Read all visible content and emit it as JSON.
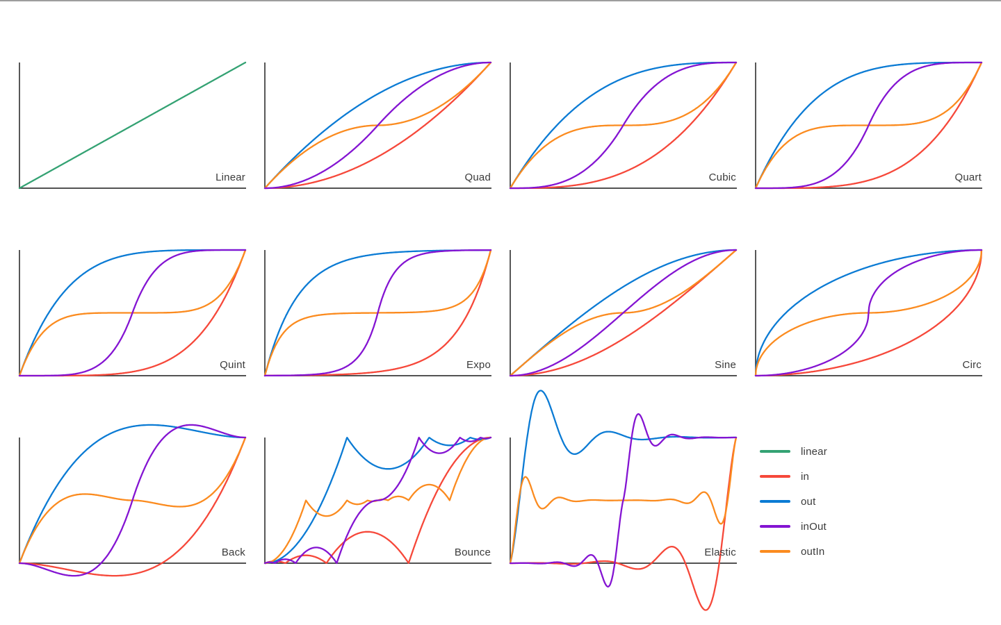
{
  "page": {
    "background": "#ffffff",
    "top_border_color": "#9d9d9d"
  },
  "colors": {
    "linear": "#34a273",
    "in": "#f6483a",
    "out": "#0b7bd4",
    "inOut": "#8414d2",
    "outIn": "#fb8b1f",
    "axis": "#3a3a3a",
    "label": "#3a3a3a"
  },
  "legend": {
    "items": [
      {
        "label": "linear",
        "color_key": "linear"
      },
      {
        "label": "in",
        "color_key": "in"
      },
      {
        "label": "out",
        "color_key": "out"
      },
      {
        "label": "inOut",
        "color_key": "inOut"
      },
      {
        "label": "outIn",
        "color_key": "outIn"
      }
    ]
  },
  "x_samples": [
    0,
    0.1,
    0.2,
    0.3,
    0.4,
    0.5,
    0.6,
    0.7,
    0.8,
    0.9,
    1
  ],
  "chart_data": [
    {
      "type": "line",
      "title": "Linear",
      "family": "linear",
      "x_range": [
        0,
        1
      ],
      "y_range": [
        0,
        1
      ],
      "grid": false,
      "series": [
        {
          "name": "linear",
          "color_key": "linear",
          "easing": "in",
          "values": [
            0,
            0.1,
            0.2,
            0.3,
            0.4,
            0.5,
            0.6,
            0.7,
            0.8,
            0.9,
            1
          ]
        }
      ]
    },
    {
      "type": "line",
      "title": "Quad",
      "family": "quad",
      "x_range": [
        0,
        1
      ],
      "y_range": [
        0,
        1
      ],
      "grid": false,
      "series": [
        {
          "name": "in",
          "color_key": "in",
          "easing": "in",
          "values": [
            0,
            0.01,
            0.04,
            0.09,
            0.16,
            0.25,
            0.36,
            0.49,
            0.64,
            0.81,
            1
          ]
        },
        {
          "name": "out",
          "color_key": "out",
          "easing": "out",
          "values": [
            0,
            0.19,
            0.36,
            0.51,
            0.64,
            0.75,
            0.84,
            0.91,
            0.96,
            0.99,
            1
          ]
        },
        {
          "name": "outIn",
          "color_key": "outIn",
          "easing": "outIn",
          "values": [
            0,
            0.18,
            0.32,
            0.42,
            0.48,
            0.5,
            0.52,
            0.58,
            0.68,
            0.82,
            1
          ]
        },
        {
          "name": "inOut",
          "color_key": "inOut",
          "easing": "inOut",
          "values": [
            0,
            0.02,
            0.08,
            0.18,
            0.32,
            0.5,
            0.68,
            0.82,
            0.92,
            0.98,
            1
          ]
        }
      ]
    },
    {
      "type": "line",
      "title": "Cubic",
      "family": "cubic",
      "x_range": [
        0,
        1
      ],
      "y_range": [
        0,
        1
      ],
      "grid": false,
      "series": [
        {
          "name": "in",
          "color_key": "in",
          "easing": "in",
          "values": [
            0,
            0.001,
            0.008,
            0.027,
            0.064,
            0.125,
            0.216,
            0.343,
            0.512,
            0.729,
            1
          ]
        },
        {
          "name": "out",
          "color_key": "out",
          "easing": "out",
          "values": [
            0,
            0.271,
            0.488,
            0.657,
            0.784,
            0.875,
            0.936,
            0.973,
            0.992,
            0.999,
            1
          ]
        },
        {
          "name": "outIn",
          "color_key": "outIn",
          "easing": "outIn",
          "values": [
            0,
            0.244,
            0.392,
            0.468,
            0.496,
            0.5,
            0.504,
            0.532,
            0.608,
            0.756,
            1
          ]
        },
        {
          "name": "inOut",
          "color_key": "inOut",
          "easing": "inOut",
          "values": [
            0,
            0.004,
            0.032,
            0.108,
            0.256,
            0.5,
            0.744,
            0.892,
            0.968,
            0.996,
            1
          ]
        }
      ]
    },
    {
      "type": "line",
      "title": "Quart",
      "family": "quart",
      "x_range": [
        0,
        1
      ],
      "y_range": [
        0,
        1
      ],
      "grid": false,
      "series": [
        {
          "name": "in",
          "color_key": "in",
          "easing": "in",
          "values": [
            0,
            0,
            0.002,
            0.008,
            0.026,
            0.063,
            0.13,
            0.24,
            0.41,
            0.656,
            1
          ]
        },
        {
          "name": "out",
          "color_key": "out",
          "easing": "out",
          "values": [
            0,
            0.344,
            0.59,
            0.76,
            0.87,
            0.938,
            0.974,
            0.992,
            0.998,
            1,
            1
          ]
        },
        {
          "name": "outIn",
          "color_key": "outIn",
          "easing": "outIn",
          "values": [
            0,
            0.295,
            0.435,
            0.487,
            0.499,
            0.5,
            0.501,
            0.513,
            0.565,
            0.705,
            1
          ]
        },
        {
          "name": "inOut",
          "color_key": "inOut",
          "easing": "inOut",
          "values": [
            0,
            0.001,
            0.013,
            0.065,
            0.205,
            0.5,
            0.795,
            0.935,
            0.987,
            0.999,
            1
          ]
        }
      ]
    },
    {
      "type": "line",
      "title": "Quint",
      "family": "quint",
      "x_range": [
        0,
        1
      ],
      "y_range": [
        0,
        1
      ],
      "grid": false,
      "series": [
        {
          "name": "in",
          "color_key": "in",
          "easing": "in",
          "values": [
            0,
            0,
            0,
            0.002,
            0.01,
            0.031,
            0.078,
            0.168,
            0.328,
            0.59,
            1
          ]
        },
        {
          "name": "out",
          "color_key": "out",
          "easing": "out",
          "values": [
            0,
            0.41,
            0.672,
            0.832,
            0.922,
            0.969,
            0.99,
            0.998,
            1,
            1,
            1
          ]
        },
        {
          "name": "outIn",
          "color_key": "outIn",
          "easing": "outIn",
          "values": [
            0,
            0.336,
            0.461,
            0.495,
            0.5,
            0.5,
            0.5,
            0.505,
            0.539,
            0.664,
            1
          ]
        },
        {
          "name": "inOut",
          "color_key": "inOut",
          "easing": "inOut",
          "values": [
            0,
            0,
            0.005,
            0.039,
            0.164,
            0.5,
            0.836,
            0.961,
            0.995,
            1,
            1
          ]
        }
      ]
    },
    {
      "type": "line",
      "title": "Expo",
      "family": "expo",
      "x_range": [
        0,
        1
      ],
      "y_range": [
        0,
        1
      ],
      "grid": false,
      "series": [
        {
          "name": "in",
          "color_key": "in",
          "easing": "in",
          "values": [
            0,
            0.002,
            0.004,
            0.008,
            0.016,
            0.031,
            0.063,
            0.125,
            0.25,
            0.5,
            1
          ]
        },
        {
          "name": "out",
          "color_key": "out",
          "easing": "out",
          "values": [
            0,
            0.5,
            0.75,
            0.875,
            0.938,
            0.969,
            0.984,
            0.992,
            0.996,
            0.998,
            1
          ]
        },
        {
          "name": "outIn",
          "color_key": "outIn",
          "easing": "outIn",
          "values": [
            0,
            0.375,
            0.469,
            0.492,
            0.498,
            0.5,
            0.502,
            0.508,
            0.531,
            0.625,
            1
          ]
        },
        {
          "name": "inOut",
          "color_key": "inOut",
          "easing": "inOut",
          "values": [
            0,
            0.002,
            0.008,
            0.031,
            0.125,
            0.5,
            0.875,
            0.969,
            0.992,
            0.998,
            1
          ]
        }
      ]
    },
    {
      "type": "line",
      "title": "Sine",
      "family": "sine",
      "x_range": [
        0,
        1
      ],
      "y_range": [
        0,
        1
      ],
      "grid": false,
      "series": [
        {
          "name": "in",
          "color_key": "in",
          "easing": "in",
          "values": [
            0,
            0.012,
            0.049,
            0.109,
            0.191,
            0.293,
            0.412,
            0.546,
            0.691,
            0.844,
            1
          ]
        },
        {
          "name": "out",
          "color_key": "out",
          "easing": "out",
          "values": [
            0,
            0.156,
            0.309,
            0.454,
            0.588,
            0.707,
            0.809,
            0.891,
            0.951,
            0.988,
            1
          ]
        },
        {
          "name": "outIn",
          "color_key": "outIn",
          "easing": "outIn",
          "values": [
            0,
            0.155,
            0.294,
            0.405,
            0.476,
            0.5,
            0.524,
            0.596,
            0.706,
            0.845,
            1
          ]
        },
        {
          "name": "inOut",
          "color_key": "inOut",
          "easing": "inOut",
          "values": [
            0,
            0.024,
            0.095,
            0.206,
            0.345,
            0.5,
            0.655,
            0.794,
            0.905,
            0.976,
            1
          ]
        }
      ]
    },
    {
      "type": "line",
      "title": "Circ",
      "family": "circ",
      "x_range": [
        0,
        1
      ],
      "y_range": [
        0,
        1
      ],
      "grid": false,
      "series": [
        {
          "name": "in",
          "color_key": "in",
          "easing": "in",
          "values": [
            0,
            0.005,
            0.02,
            0.046,
            0.083,
            0.134,
            0.2,
            0.286,
            0.4,
            0.564,
            1
          ]
        },
        {
          "name": "out",
          "color_key": "out",
          "easing": "out",
          "values": [
            0,
            0.436,
            0.6,
            0.714,
            0.8,
            0.866,
            0.917,
            0.954,
            0.98,
            0.995,
            1
          ]
        },
        {
          "name": "outIn",
          "color_key": "outIn",
          "easing": "outIn",
          "values": [
            0,
            0.3,
            0.4,
            0.458,
            0.49,
            0.5,
            0.51,
            0.542,
            0.6,
            0.7,
            1
          ]
        },
        {
          "name": "inOut",
          "color_key": "inOut",
          "easing": "inOut",
          "values": [
            0,
            0.01,
            0.042,
            0.1,
            0.2,
            0.5,
            0.8,
            0.9,
            0.958,
            0.99,
            1
          ]
        }
      ]
    },
    {
      "type": "line",
      "title": "Back",
      "family": "back",
      "x_range": [
        0,
        1
      ],
      "y_range": [
        -0.1,
        1.1
      ],
      "grid": false,
      "series": [
        {
          "name": "in",
          "color_key": "in",
          "easing": "in",
          "values": [
            0,
            -0.014,
            -0.046,
            -0.08,
            -0.099,
            -0.088,
            -0.029,
            0.093,
            0.294,
            0.591,
            1
          ]
        },
        {
          "name": "out",
          "color_key": "out",
          "easing": "out",
          "values": [
            0,
            0.409,
            0.706,
            0.907,
            1.029,
            1.088,
            1.099,
            1.08,
            1.046,
            1.014,
            1
          ]
        },
        {
          "name": "outIn",
          "color_key": "outIn",
          "easing": "outIn",
          "values": [
            0,
            0.353,
            0.515,
            0.549,
            0.523,
            0.5,
            0.477,
            0.45,
            0.485,
            0.647,
            1
          ]
        },
        {
          "name": "inOut",
          "color_key": "inOut",
          "easing": "inOut",
          "values": [
            0,
            -0.038,
            -0.093,
            -0.079,
            0.09,
            0.5,
            0.91,
            1.079,
            1.093,
            1.038,
            1
          ]
        }
      ]
    },
    {
      "type": "line",
      "title": "Bounce",
      "family": "bounce",
      "x_range": [
        0,
        1
      ],
      "y_range": [
        0,
        1
      ],
      "grid": false,
      "series": [
        {
          "name": "in",
          "color_key": "in",
          "easing": "in",
          "values": [
            0,
            0.012,
            0.06,
            0.069,
            0.228,
            0.234,
            0.09,
            0.319,
            0.698,
            0.924,
            1
          ]
        },
        {
          "name": "out",
          "color_key": "out",
          "easing": "out",
          "values": [
            0,
            0.076,
            0.303,
            0.681,
            0.91,
            0.766,
            0.772,
            0.931,
            0.94,
            0.988,
            1
          ]
        },
        {
          "name": "outIn",
          "color_key": "outIn",
          "easing": "outIn",
          "values": [
            0,
            0.151,
            0.455,
            0.386,
            0.47,
            0.5,
            0.53,
            0.614,
            0.545,
            0.849,
            1
          ]
        },
        {
          "name": "inOut",
          "color_key": "inOut",
          "easing": "inOut",
          "values": [
            0,
            0.03,
            0.114,
            0.045,
            0.349,
            0.5,
            0.651,
            0.955,
            0.883,
            0.97,
            1
          ]
        }
      ]
    },
    {
      "type": "line",
      "title": "Elastic",
      "family": "elastic",
      "x_range": [
        0,
        1
      ],
      "y_range": [
        -0.37,
        1.39
      ],
      "grid": false,
      "series": [
        {
          "name": "in",
          "color_key": "in",
          "easing": "in",
          "values": [
            0,
            0.002,
            -0.002,
            -0.004,
            0.016,
            -0.016,
            -0.031,
            0.125,
            -0.125,
            -0.25,
            1
          ]
        },
        {
          "name": "out",
          "color_key": "out",
          "easing": "out",
          "values": [
            0,
            1.25,
            1.125,
            0.875,
            1.031,
            1.016,
            0.984,
            1.004,
            1.002,
            0.998,
            1
          ]
        },
        {
          "name": "outIn",
          "color_key": "outIn",
          "easing": "outIn",
          "values": [
            0,
            0.563,
            0.516,
            0.492,
            0.501,
            0.5,
            0.499,
            0.508,
            0.484,
            0.438,
            1
          ]
        },
        {
          "name": "inOut",
          "color_key": "inOut",
          "easing": "inOut",
          "values": [
            0,
            0.001,
            0.008,
            -0.016,
            -0.063,
            0.5,
            1.063,
            1.016,
            0.992,
            0.999,
            1
          ]
        }
      ]
    }
  ]
}
